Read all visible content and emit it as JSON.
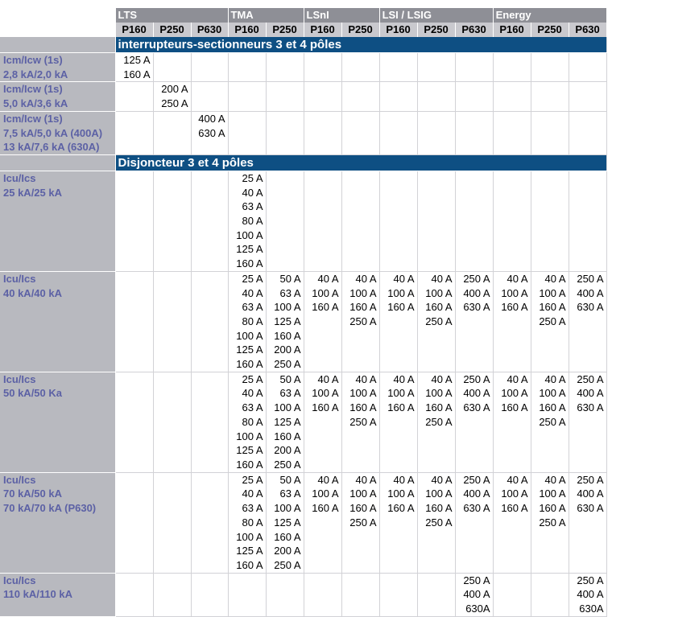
{
  "header": {
    "groups": [
      {
        "label": "LTS",
        "span": 3
      },
      {
        "label": "TMA",
        "span": 2
      },
      {
        "label": "LSnI",
        "span": 2
      },
      {
        "label": "LSI / LSIG",
        "span": 3
      },
      {
        "label": "Energy",
        "span": 3
      }
    ],
    "models": [
      "P160",
      "P250",
      "P630",
      "P160",
      "P250",
      "P160",
      "P250",
      "P160",
      "P250",
      "P630",
      "P160",
      "P250",
      "P630"
    ]
  },
  "sections": [
    {
      "title": "interrupteurs-sectionneurs 3 et 4 pôles",
      "rows": [
        {
          "label": [
            "Icm/Icw (1s)",
            "2,8 kA/2,0 kA"
          ],
          "cells": [
            [
              "125 A",
              "160 A"
            ],
            [],
            [],
            [],
            [],
            [],
            [],
            [],
            [],
            [],
            [],
            [],
            []
          ]
        },
        {
          "label": [
            "Icm/Icw (1s)",
            "5,0 kA/3,6 kA"
          ],
          "cells": [
            [],
            [
              "200 A",
              "250 A"
            ],
            [],
            [],
            [],
            [],
            [],
            [],
            [],
            [],
            [],
            [],
            []
          ]
        },
        {
          "label": [
            "Icm/Icw (1s)",
            "7,5 kA/5,0 kA (400A)",
            "13 kA/7,6 kA (630A)"
          ],
          "cells": [
            [],
            [],
            [
              "400 A",
              "630 A"
            ],
            [],
            [],
            [],
            [],
            [],
            [],
            [],
            [],
            [],
            []
          ]
        }
      ]
    },
    {
      "title": "Disjoncteur 3 et 4 pôles",
      "rows": [
        {
          "label": [
            "Icu/Ics",
            "25 kA/25 kA"
          ],
          "cells": [
            [],
            [],
            [],
            [
              "25 A",
              "40 A",
              "63 A",
              "80 A",
              "100 A",
              "125 A",
              "160 A"
            ],
            [],
            [],
            [],
            [],
            [],
            [],
            [],
            [],
            []
          ]
        },
        {
          "label": [
            "Icu/Ics",
            "40 kA/40 kA"
          ],
          "cells": [
            [],
            [],
            [],
            [
              "25 A",
              "40 A",
              "63 A",
              "80 A",
              "100 A",
              "125 A",
              "160 A"
            ],
            [
              "50 A",
              "63 A",
              "100 A",
              "125 A",
              "160 A",
              "200 A",
              "250 A"
            ],
            [
              "40 A",
              "100 A",
              "160 A"
            ],
            [
              "40 A",
              "100 A",
              "160 A",
              "250 A"
            ],
            [
              "40 A",
              "100 A",
              "160 A"
            ],
            [
              "40 A",
              "100 A",
              "160 A",
              "250 A"
            ],
            [
              "250 A",
              "400 A",
              "630 A"
            ],
            [
              "40 A",
              "100 A",
              "160 A"
            ],
            [
              "40 A",
              "100 A",
              "160 A",
              "250 A"
            ],
            [
              "250 A",
              "400 A",
              "630 A"
            ]
          ]
        },
        {
          "label": [
            "Icu/Ics",
            "50 kA/50 Ka"
          ],
          "cells": [
            [],
            [],
            [],
            [
              "25 A",
              "40 A",
              "63 A",
              "80 A",
              "100 A",
              "125 A",
              "160 A"
            ],
            [
              "50 A",
              "63 A",
              "100 A",
              "125 A",
              "160 A",
              "200 A",
              "250 A"
            ],
            [
              "40 A",
              "100 A",
              "160 A"
            ],
            [
              "40 A",
              "100 A",
              "160 A",
              "250 A"
            ],
            [
              "40 A",
              "100 A",
              "160 A"
            ],
            [
              "40 A",
              "100 A",
              "160 A",
              "250 A"
            ],
            [
              "250 A",
              "400 A",
              "630 A"
            ],
            [
              "40 A",
              "100 A",
              "160 A"
            ],
            [
              "40 A",
              "100 A",
              "160 A",
              "250 A"
            ],
            [
              "250 A",
              "400 A",
              "630 A"
            ]
          ]
        },
        {
          "label": [
            "Icu/Ics",
            "70 kA/50 kA",
            "70 kA/70 kA (P630)"
          ],
          "cells": [
            [],
            [],
            [],
            [
              "25 A",
              "40 A",
              "63 A",
              "80 A",
              "100 A",
              "125 A",
              "160 A"
            ],
            [
              "50 A",
              "63 A",
              "100 A",
              "125 A",
              "160 A",
              "200 A",
              "250 A"
            ],
            [
              "40 A",
              "100 A",
              "160 A"
            ],
            [
              "40 A",
              "100 A",
              "160 A",
              "250 A"
            ],
            [
              "40 A",
              "100 A",
              "160 A"
            ],
            [
              "40 A",
              "100 A",
              "160 A",
              "250 A"
            ],
            [
              "250 A",
              "400 A",
              "630 A"
            ],
            [
              "40 A",
              "100 A",
              "160 A"
            ],
            [
              "40 A",
              "100 A",
              "160 A",
              "250 A"
            ],
            [
              "250 A",
              "400 A",
              "630 A"
            ]
          ]
        },
        {
          "label": [
            "Icu/Ics",
            "110 kA/110 kA"
          ],
          "cells": [
            [],
            [],
            [],
            [],
            [],
            [],
            [],
            [],
            [],
            [
              "250 A",
              "400 A",
              "630A"
            ],
            [],
            [],
            [
              "250 A",
              "400 A",
              "630A"
            ]
          ]
        }
      ]
    }
  ]
}
